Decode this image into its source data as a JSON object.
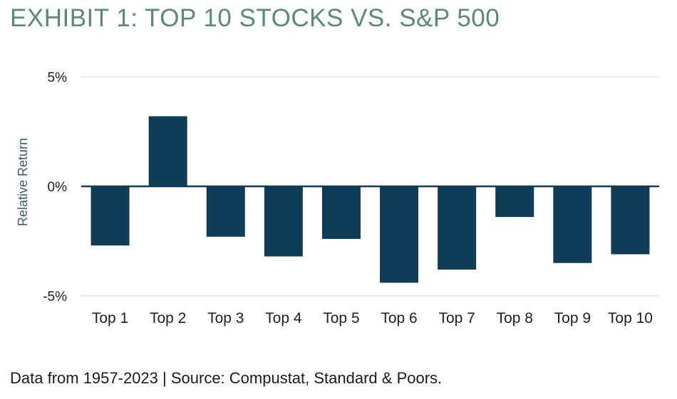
{
  "title": "EXHIBIT 1: TOP 10 STOCKS VS. S&P 500",
  "source": "Data from 1957-2023 | Source: Compustat, Standard & Poors.",
  "colors": {
    "bar": "#0f3d57",
    "title": "#5b8a78",
    "grid": "#e3e3e3",
    "zero_line": "#0f3d57"
  },
  "chart_data": {
    "type": "bar",
    "title": "EXHIBIT 1: TOP 10 STOCKS VS. S&P 500",
    "xlabel": "",
    "ylabel": "Relative Return",
    "categories": [
      "Top 1",
      "Top 2",
      "Top 3",
      "Top 4",
      "Top 5",
      "Top 6",
      "Top 7",
      "Top 8",
      "Top 9",
      "Top 10"
    ],
    "values": [
      -2.7,
      3.2,
      -2.3,
      -3.2,
      -2.4,
      -4.4,
      -3.8,
      -1.4,
      -3.5,
      -3.1
    ],
    "unit": "%",
    "ylim": [
      -5,
      5
    ],
    "yticks": [
      {
        "value": 5,
        "label": "5%"
      },
      {
        "value": 0,
        "label": "0%"
      },
      {
        "value": -5,
        "label": "-5%"
      }
    ],
    "grid": true,
    "legend": "none"
  }
}
